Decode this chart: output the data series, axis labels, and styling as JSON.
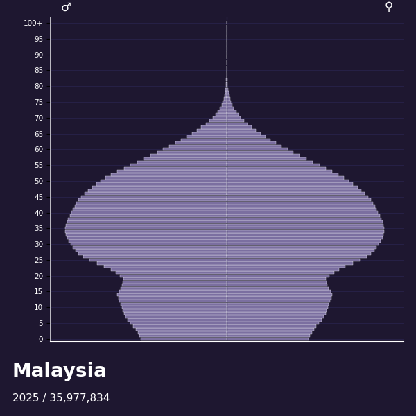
{
  "title": "Malaysia",
  "subtitle": "2025 / 35,977,834",
  "bg_color": "#1e1730",
  "bar_color": "#7b6fa0",
  "bar_edge_color": "#ffffff",
  "center_line_color": "#332d55",
  "grid_color": "#2a2550",
  "text_color": "#ffffff",
  "male_symbol": "♂",
  "female_symbol": "♀",
  "ages": [
    0,
    1,
    2,
    3,
    4,
    5,
    6,
    7,
    8,
    9,
    10,
    11,
    12,
    13,
    14,
    15,
    16,
    17,
    18,
    19,
    20,
    21,
    22,
    23,
    24,
    25,
    26,
    27,
    28,
    29,
    30,
    31,
    32,
    33,
    34,
    35,
    36,
    37,
    38,
    39,
    40,
    41,
    42,
    43,
    44,
    45,
    46,
    47,
    48,
    49,
    50,
    51,
    52,
    53,
    54,
    55,
    56,
    57,
    58,
    59,
    60,
    61,
    62,
    63,
    64,
    65,
    66,
    67,
    68,
    69,
    70,
    71,
    72,
    73,
    74,
    75,
    76,
    77,
    78,
    79,
    80,
    81,
    82,
    83,
    84,
    85,
    86,
    87,
    88,
    89,
    90,
    91,
    92,
    93,
    94,
    95,
    96,
    97,
    98,
    99,
    100
  ],
  "male": [
    155000,
    158000,
    161000,
    165000,
    169000,
    174000,
    179000,
    183000,
    186000,
    188000,
    190000,
    192000,
    194000,
    196000,
    198000,
    195000,
    192000,
    189000,
    188000,
    187000,
    193000,
    201000,
    210000,
    222000,
    235000,
    248000,
    260000,
    268000,
    274000,
    278000,
    282000,
    286000,
    289000,
    291000,
    292000,
    292000,
    291000,
    289000,
    287000,
    284000,
    281000,
    278000,
    275000,
    272000,
    268000,
    263000,
    257000,
    251000,
    244000,
    236000,
    228000,
    219000,
    209000,
    198000,
    186000,
    174000,
    162000,
    150000,
    138000,
    126000,
    115000,
    104000,
    93000,
    83000,
    73000,
    63000,
    54000,
    46000,
    38000,
    31000,
    25000,
    20000,
    16000,
    12000,
    9000,
    7000,
    5000,
    3800,
    2800,
    2000,
    1500,
    1050,
    730,
    510,
    350,
    240,
    160,
    105,
    68,
    44,
    28,
    17,
    11,
    7,
    4,
    2,
    1,
    1,
    0,
    0,
    0
  ],
  "female": [
    148000,
    151000,
    154000,
    158000,
    162000,
    167000,
    172000,
    176000,
    179000,
    181000,
    183000,
    185000,
    187000,
    189000,
    191000,
    188000,
    185000,
    182000,
    181000,
    180000,
    186000,
    194000,
    203000,
    215000,
    228000,
    241000,
    253000,
    261000,
    267000,
    271000,
    275000,
    279000,
    282000,
    284000,
    285000,
    285000,
    284000,
    282000,
    280000,
    277000,
    274000,
    271000,
    268000,
    265000,
    261000,
    256000,
    250000,
    244000,
    237000,
    229000,
    221000,
    212000,
    202000,
    191000,
    179000,
    168000,
    156000,
    144000,
    132000,
    121000,
    110000,
    99000,
    89000,
    79000,
    70000,
    61000,
    53000,
    45000,
    38000,
    31000,
    25000,
    21000,
    17000,
    13000,
    10000,
    8000,
    6000,
    4400,
    3200,
    2300,
    1750,
    1250,
    880,
    620,
    430,
    300,
    205,
    137,
    89,
    57,
    36,
    22,
    14,
    9,
    5,
    3,
    2,
    1,
    0,
    0,
    0
  ],
  "xlim": 320000,
  "ytick_ages": [
    0,
    5,
    10,
    15,
    20,
    25,
    30,
    35,
    40,
    45,
    50,
    55,
    60,
    65,
    70,
    75,
    80,
    85,
    90,
    95,
    100
  ]
}
